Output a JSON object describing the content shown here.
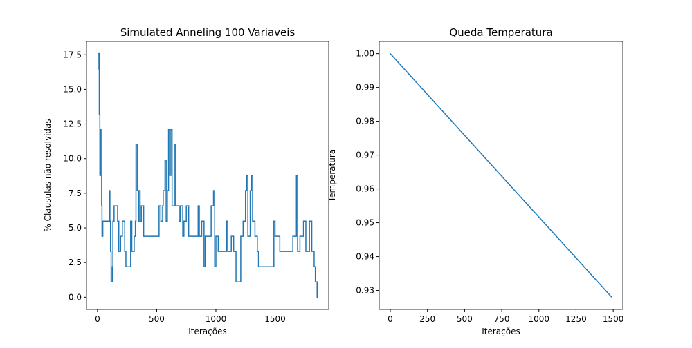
{
  "chart_data": [
    {
      "type": "line",
      "title": "Simulated Anneling 100 Variaveis",
      "xlabel": "Iterações",
      "ylabel": "% Clausulas não resolvidas",
      "step": true,
      "x": [
        0,
        5,
        15,
        20,
        25,
        30,
        35,
        38,
        45,
        100,
        105,
        110,
        115,
        125,
        130,
        140,
        170,
        180,
        195,
        210,
        230,
        240,
        280,
        290,
        310,
        320,
        325,
        335,
        345,
        350,
        360,
        370,
        390,
        520,
        535,
        550,
        555,
        570,
        580,
        590,
        600,
        610,
        620,
        630,
        650,
        660,
        690,
        700,
        720,
        730,
        750,
        770,
        850,
        860,
        880,
        900,
        910,
        960,
        980,
        990,
        1000,
        1020,
        1090,
        1100,
        1130,
        1150,
        1170,
        1210,
        1230,
        1250,
        1260,
        1270,
        1290,
        1300,
        1310,
        1330,
        1350,
        1360,
        1490,
        1500,
        1540,
        1650,
        1680,
        1690,
        1710,
        1740,
        1760,
        1790,
        1810,
        1830,
        1840,
        1855,
        1860
      ],
      "series": [
        {
          "name": "temp-series",
          "color": "#1f77b4",
          "values": [
            16.48,
            17.58,
            13.19,
            8.79,
            12.09,
            8.79,
            6.59,
            4.4,
            5.49,
            7.69,
            5.49,
            3.3,
            1.1,
            2.2,
            5.49,
            6.59,
            5.49,
            3.3,
            4.4,
            5.49,
            3.3,
            2.2,
            5.49,
            3.3,
            4.4,
            5.49,
            10.99,
            7.69,
            5.49,
            7.69,
            5.49,
            6.59,
            4.4,
            6.59,
            5.49,
            6.59,
            7.69,
            9.89,
            5.49,
            7.69,
            12.09,
            8.79,
            12.09,
            6.59,
            10.99,
            6.59,
            5.49,
            6.59,
            4.4,
            5.49,
            6.59,
            4.4,
            6.59,
            4.4,
            5.49,
            2.2,
            4.4,
            6.59,
            7.69,
            2.2,
            4.4,
            3.3,
            5.49,
            3.3,
            4.4,
            3.3,
            1.1,
            4.4,
            5.49,
            7.69,
            8.79,
            4.4,
            7.69,
            8.79,
            5.49,
            4.4,
            3.3,
            2.2,
            5.49,
            4.4,
            3.3,
            4.4,
            8.79,
            3.3,
            4.4,
            5.49,
            3.3,
            5.49,
            3.3,
            2.2,
            1.1,
            0,
            0
          ]
        }
      ],
      "xlim": [
        -93,
        1953
      ],
      "xticks": [
        0,
        500,
        1000,
        1500
      ],
      "ylim": [
        -0.88,
        18.46
      ],
      "yticks": [
        {
          "value": 0,
          "label": "0.0"
        },
        2.5,
        {
          "value": 5,
          "label": "5.0"
        },
        7.5,
        {
          "value": 10,
          "label": "10.0"
        },
        12.5,
        {
          "value": 15,
          "label": "15.0"
        },
        17.5
      ]
    },
    {
      "type": "line",
      "title": "Queda Temperatura",
      "xlabel": "Iterações",
      "ylabel": "Temperatura",
      "x": [
        0,
        1490
      ],
      "series": [
        {
          "name": "temperatura",
          "color": "#1f77b4",
          "values": [
            1.0,
            0.928
          ]
        }
      ],
      "xlim": [
        -74.5,
        1564.5
      ],
      "xticks": [
        0,
        250,
        500,
        750,
        1000,
        1250,
        1500
      ],
      "ylim": [
        0.9244,
        1.0036
      ],
      "yticks": [
        0.93,
        0.94,
        0.95,
        0.96,
        0.97,
        0.98,
        0.99,
        {
          "value": 1,
          "label": "1.00"
        }
      ]
    }
  ]
}
